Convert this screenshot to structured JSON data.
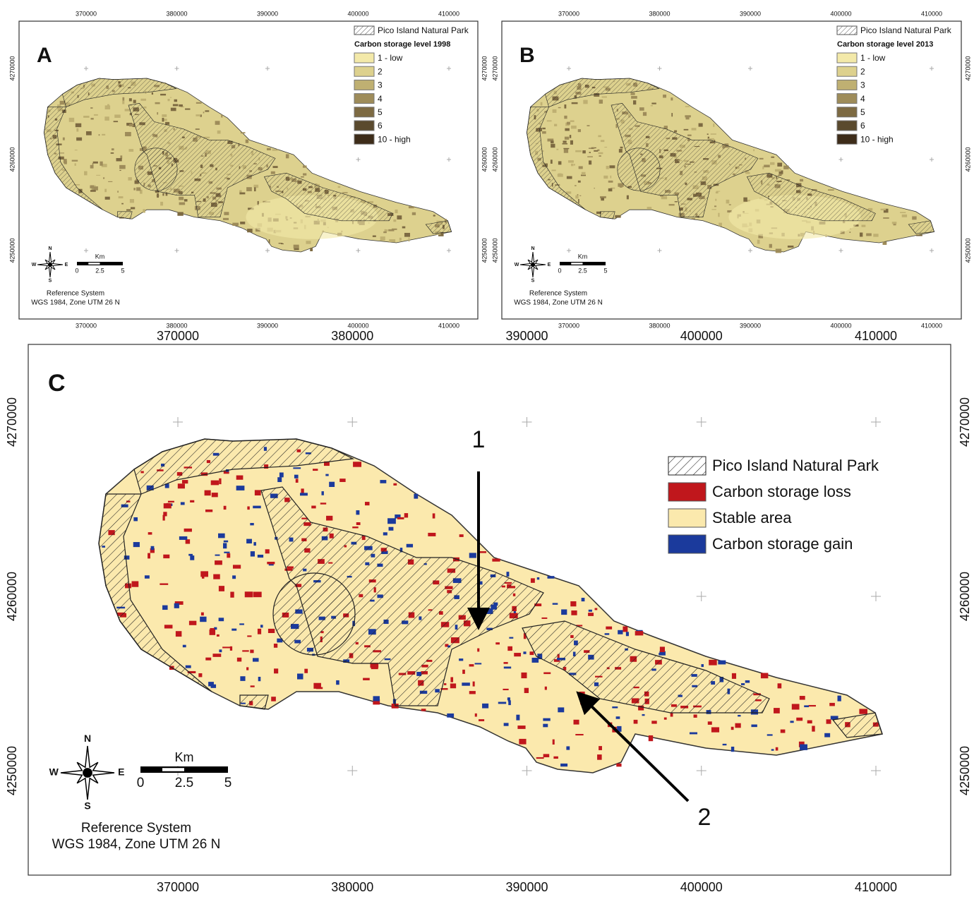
{
  "panels": [
    {
      "label": "A",
      "x_top": [
        "370000",
        "380000",
        "390000",
        "400000",
        "410000"
      ],
      "x_bottom": [
        "370000",
        "380000",
        "390000",
        "400000",
        "410000"
      ],
      "y_left": [
        "4270000",
        "4260000",
        "4250000"
      ],
      "y_right": [
        "4270000",
        "4260000",
        "4250000"
      ],
      "legend": {
        "park": "Pico Island Natural Park",
        "title": "Carbon storage level 1998",
        "classes": [
          "1 - low",
          "2",
          "3",
          "4",
          "5",
          "6",
          "10 - high"
        ],
        "colors": [
          "#f3e9a9",
          "#ddd18e",
          "#bfb072",
          "#9e8c5a",
          "#7d6a42",
          "#5a4a2e",
          "#3d2c19"
        ]
      },
      "compass": [
        "N",
        "S",
        "W",
        "E"
      ],
      "scale": {
        "unit": "Km",
        "ticks": [
          "0",
          "2.5",
          "5"
        ]
      },
      "reference": [
        "Reference System",
        "WGS 1984, Zone UTM 26 N"
      ]
    },
    {
      "label": "B",
      "x_top": [
        "370000",
        "380000",
        "390000",
        "400000",
        "410000"
      ],
      "x_bottom": [
        "370000",
        "380000",
        "390000",
        "400000",
        "410000"
      ],
      "y_left": [
        "4270000",
        "4260000",
        "4250000"
      ],
      "y_right": [
        "4270000",
        "4260000",
        "4250000"
      ],
      "legend": {
        "park": "Pico Island Natural Park",
        "title": "Carbon storage level 2013",
        "classes": [
          "1 - low",
          "2",
          "3",
          "4",
          "5",
          "6",
          "10 - high"
        ],
        "colors": [
          "#f3e9a9",
          "#ddd18e",
          "#bfb072",
          "#9e8c5a",
          "#7d6a42",
          "#5a4a2e",
          "#3d2c19"
        ]
      },
      "compass": [
        "N",
        "S",
        "W",
        "E"
      ],
      "scale": {
        "unit": "Km",
        "ticks": [
          "0",
          "2.5",
          "5"
        ]
      },
      "reference": [
        "Reference System",
        "WGS 1984, Zone UTM 26 N"
      ]
    },
    {
      "label": "C",
      "x_top": [
        "370000",
        "380000",
        "390000",
        "400000",
        "410000"
      ],
      "x_bottom": [
        "370000",
        "380000",
        "390000",
        "400000",
        "410000"
      ],
      "y_left": [
        "4270000",
        "4260000",
        "4250000"
      ],
      "y_right": [
        "4270000",
        "4260000",
        "4250000"
      ],
      "legend": {
        "park": "Pico Island Natural Park",
        "classes": [
          "Carbon storage loss",
          "Stable area",
          "Carbon storage gain"
        ],
        "colors": [
          "#c0171c",
          "#fbe9ad",
          "#1b3a9c"
        ]
      },
      "arrows": [
        "1",
        "2"
      ],
      "compass": [
        "N",
        "S",
        "W",
        "E"
      ],
      "scale": {
        "unit": "Km",
        "ticks": [
          "0",
          "2.5",
          "5"
        ]
      },
      "reference": [
        "Reference System",
        "WGS 1984, Zone UTM 26 N"
      ]
    }
  ]
}
